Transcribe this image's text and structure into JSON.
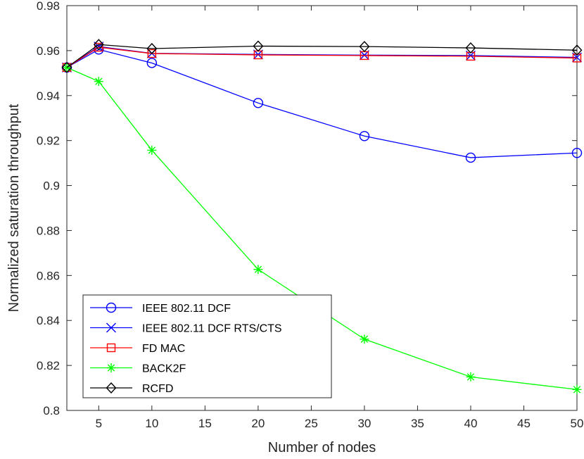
{
  "chart_data": {
    "type": "line",
    "title": "",
    "xlabel": "Number of nodes",
    "ylabel": "Normalized saturation throughput",
    "xlim": [
      2,
      50
    ],
    "ylim": [
      0.8,
      0.98
    ],
    "xticks": [
      5,
      10,
      15,
      20,
      25,
      30,
      35,
      40,
      45,
      50
    ],
    "xtick_labels": [
      "5",
      "10",
      "15",
      "20",
      "25",
      "30",
      "35",
      "40",
      "45",
      "50"
    ],
    "yticks": [
      0.8,
      0.82,
      0.84,
      0.86,
      0.88,
      0.9,
      0.92,
      0.94,
      0.96,
      0.98
    ],
    "ytick_labels": [
      "0.8",
      "0.82",
      "0.84",
      "0.86",
      "0.88",
      "0.9",
      "0.92",
      "0.94",
      "0.96",
      "0.98"
    ],
    "grid": false,
    "legend_position": "bottom-left",
    "x": [
      2,
      5,
      10,
      20,
      30,
      40,
      50
    ],
    "series": [
      {
        "name": "IEEE 802.11 DCF",
        "color": "#0000ff",
        "marker": "circle",
        "values": [
          0.9525,
          0.9605,
          0.9545,
          0.9367,
          0.922,
          0.9124,
          0.9145
        ]
      },
      {
        "name": "IEEE 802.11 DCF RTS/CTS",
        "color": "#0000ff",
        "marker": "x",
        "values": [
          0.9525,
          0.9618,
          0.9588,
          0.9583,
          0.958,
          0.9578,
          0.957
        ]
      },
      {
        "name": "FD MAC",
        "color": "#ff0000",
        "marker": "square",
        "values": [
          0.9525,
          0.9615,
          0.9587,
          0.9581,
          0.9578,
          0.9575,
          0.9567
        ]
      },
      {
        "name": "BACK2F",
        "color": "#00ff00",
        "marker": "asterisk",
        "values": [
          0.9525,
          0.9463,
          0.9157,
          0.8627,
          0.8317,
          0.8149,
          0.8093
        ]
      },
      {
        "name": "RCFD",
        "color": "#000000",
        "marker": "diamond",
        "values": [
          0.9525,
          0.9627,
          0.9609,
          0.962,
          0.9618,
          0.9612,
          0.9602
        ]
      }
    ]
  }
}
